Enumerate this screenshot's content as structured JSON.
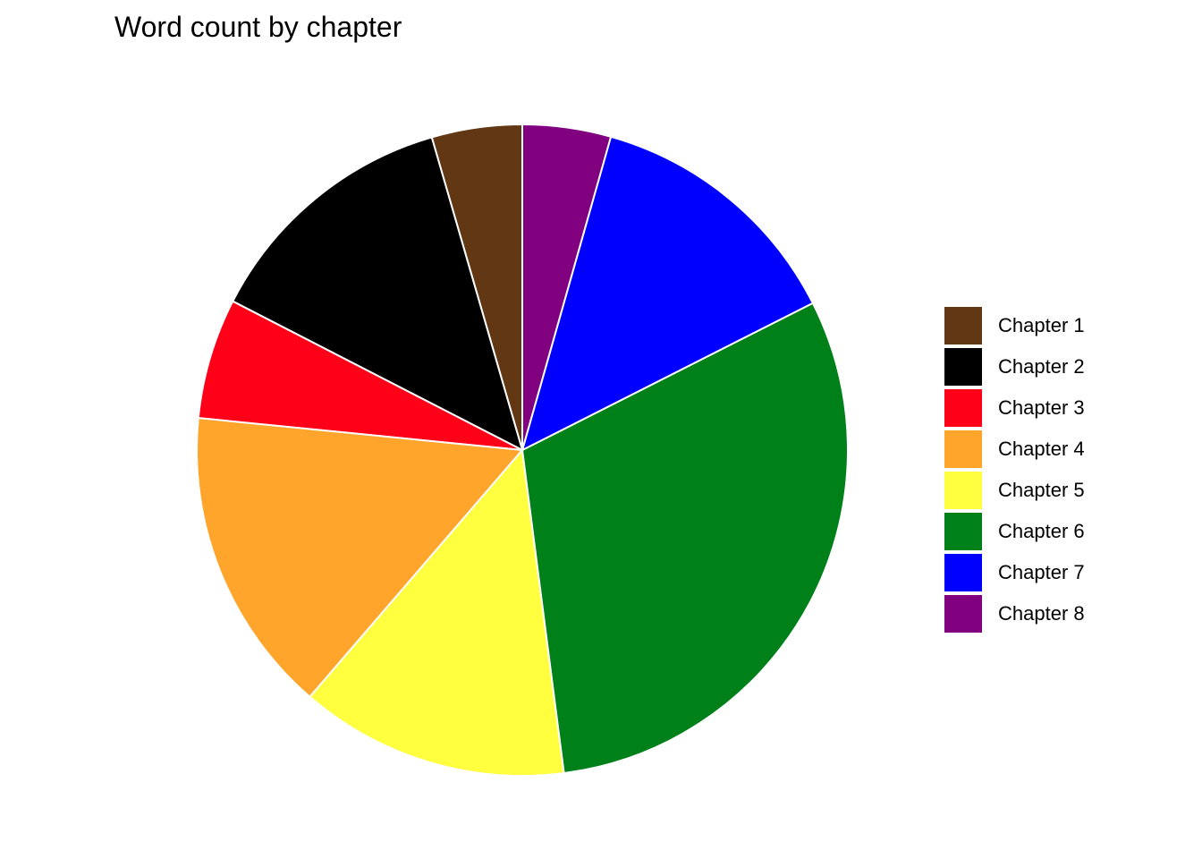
{
  "chart_data": {
    "type": "pie",
    "title": "Word count by chapter",
    "categories": [
      "Chapter 1",
      "Chapter 2",
      "Chapter 3",
      "Chapter 4",
      "Chapter 5",
      "Chapter 6",
      "Chapter 7",
      "Chapter 8"
    ],
    "values": [
      4.5,
      13.0,
      6.0,
      15.3,
      13.4,
      30.5,
      13.2,
      4.4
    ],
    "value_unit": "percent of total word count (estimated)",
    "colors": [
      "#613813",
      "#000000",
      "#FF0019",
      "#FFA52B",
      "#FFFF3F",
      "#008019",
      "#0000FF",
      "#800080"
    ],
    "direction": "counterclockwise from 12 o'clock",
    "legend_position": "right"
  }
}
